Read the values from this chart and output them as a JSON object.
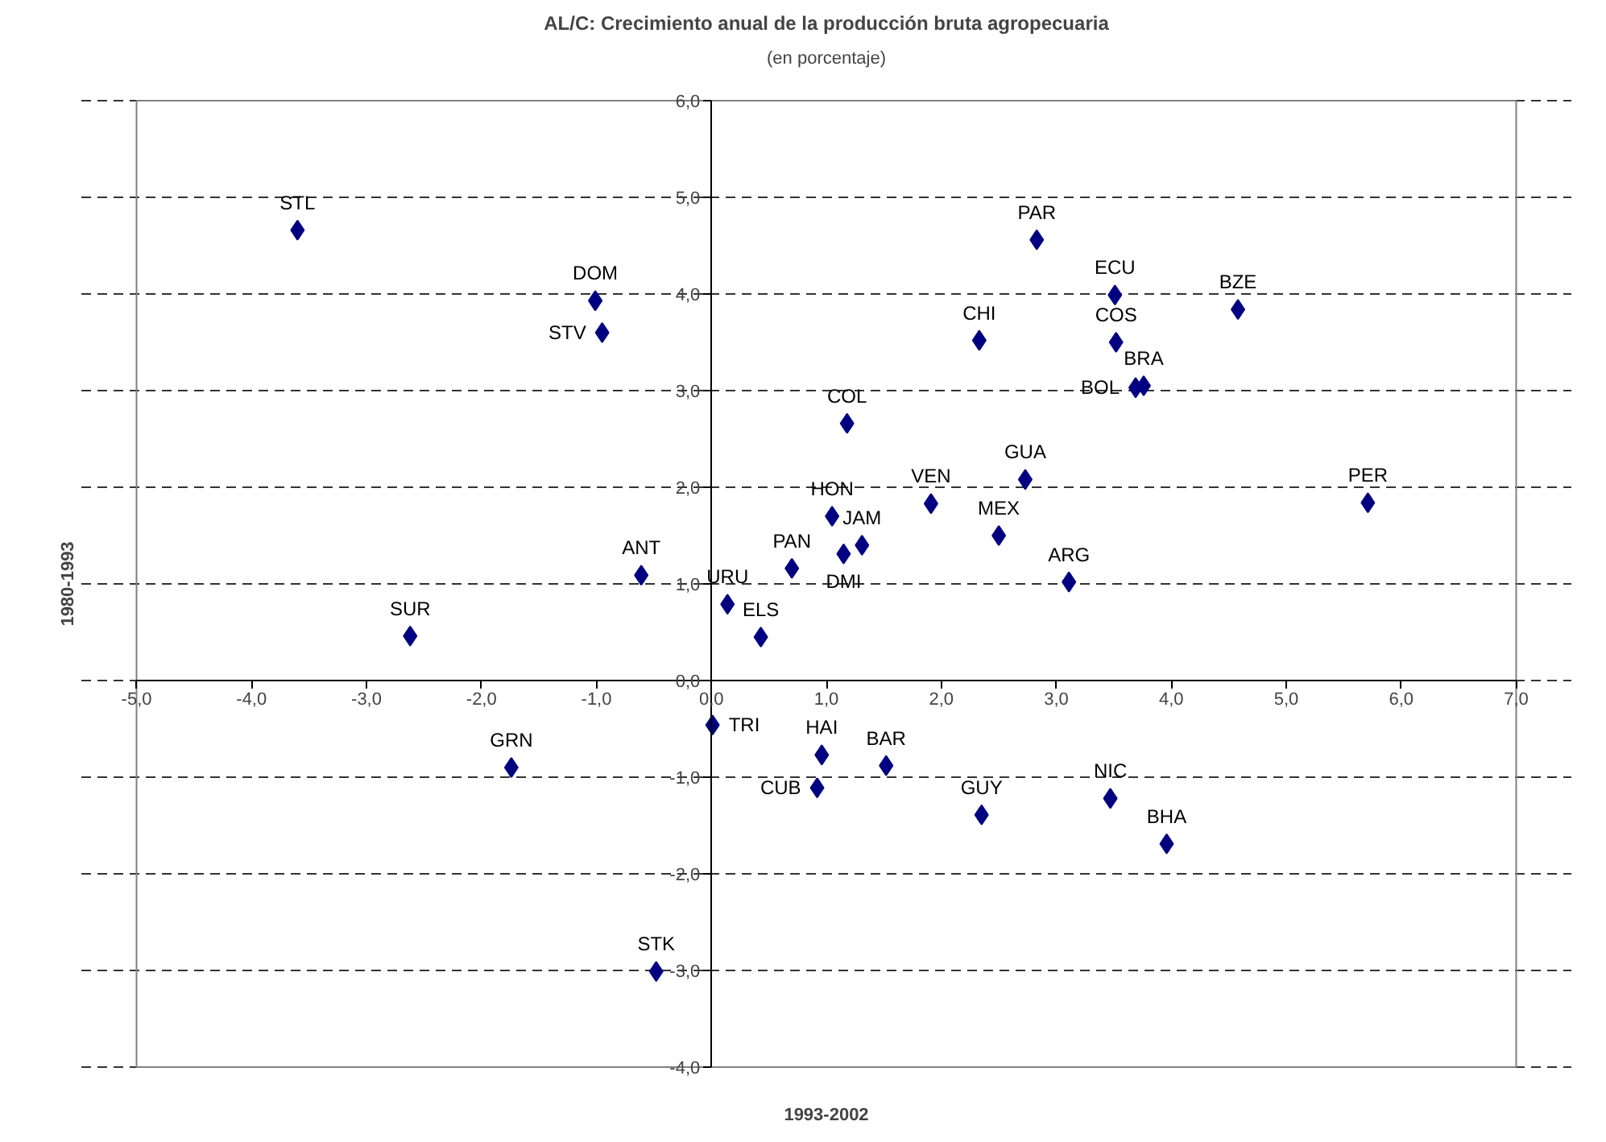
{
  "chart_data": {
    "type": "scatter",
    "title": "AL/C: Crecimiento anual de la producción bruta agropecuaria",
    "subtitle": "(en porcentaje)",
    "xlabel": "1993-2002",
    "ylabel": "1980-1993",
    "x": [
      -3.6,
      -1.01,
      -0.95,
      -0.61,
      0.14,
      -2.62,
      0.43,
      2.83,
      3.51,
      4.58,
      2.33,
      3.52,
      3.69,
      3.76,
      1.18,
      2.73,
      1.91,
      1.05,
      2.5,
      1.31,
      1.15,
      0.7,
      3.11,
      5.71,
      0.01,
      -1.74,
      0.96,
      1.52,
      0.92,
      2.35,
      3.47,
      3.96,
      -0.48
    ],
    "series": [
      {
        "color": "#000080",
        "values": [
          4.66,
          3.93,
          3.6,
          1.09,
          0.79,
          0.46,
          0.45,
          4.56,
          3.99,
          3.84,
          3.52,
          3.5,
          3.03,
          3.05,
          2.66,
          2.08,
          1.83,
          1.7,
          1.5,
          1.4,
          1.31,
          1.16,
          1.02,
          1.84,
          -0.46,
          -0.9,
          -0.77,
          -0.88,
          -1.11,
          -1.39,
          -1.22,
          -1.69,
          -3.01
        ]
      }
    ],
    "annotations": [
      {
        "text": "STL",
        "x": -3.6,
        "y": 4.66
      },
      {
        "text": "DOM",
        "x": -1.01,
        "y": 3.93
      },
      {
        "text": "STV",
        "x": -0.95,
        "y": 3.6
      },
      {
        "text": "ANT",
        "x": -0.61,
        "y": 1.09
      },
      {
        "text": "URU",
        "x": 0.14,
        "y": 0.79
      },
      {
        "text": "SUR",
        "x": -2.62,
        "y": 0.46
      },
      {
        "text": "ELS",
        "x": 0.43,
        "y": 0.45
      },
      {
        "text": "PAR",
        "x": 2.83,
        "y": 4.56
      },
      {
        "text": "ECU",
        "x": 3.51,
        "y": 3.99
      },
      {
        "text": "BZE",
        "x": 4.58,
        "y": 3.84
      },
      {
        "text": "CHI",
        "x": 2.33,
        "y": 3.52
      },
      {
        "text": "COS",
        "x": 3.52,
        "y": 3.5
      },
      {
        "text": "BOL",
        "x": 3.69,
        "y": 3.03
      },
      {
        "text": "BRA",
        "x": 3.76,
        "y": 3.05
      },
      {
        "text": "COL",
        "x": 1.18,
        "y": 2.66
      },
      {
        "text": "GUA",
        "x": 2.73,
        "y": 2.08
      },
      {
        "text": "VEN",
        "x": 1.91,
        "y": 1.83
      },
      {
        "text": "HON",
        "x": 1.05,
        "y": 1.7
      },
      {
        "text": "MEX",
        "x": 2.5,
        "y": 1.5
      },
      {
        "text": "JAM",
        "x": 1.31,
        "y": 1.4
      },
      {
        "text": "DMI",
        "x": 1.15,
        "y": 1.31
      },
      {
        "text": "PAN",
        "x": 0.7,
        "y": 1.16
      },
      {
        "text": "ARG",
        "x": 3.11,
        "y": 1.02
      },
      {
        "text": "PER",
        "x": 5.71,
        "y": 1.84
      },
      {
        "text": "TRI",
        "x": 0.01,
        "y": -0.46
      },
      {
        "text": "GRN",
        "x": -1.74,
        "y": -0.9
      },
      {
        "text": "HAI",
        "x": 0.96,
        "y": -0.77
      },
      {
        "text": "BAR",
        "x": 1.52,
        "y": -0.88
      },
      {
        "text": "CUB",
        "x": 0.92,
        "y": -1.11
      },
      {
        "text": "GUY",
        "x": 2.35,
        "y": -1.39
      },
      {
        "text": "NIC",
        "x": 3.47,
        "y": -1.22
      },
      {
        "text": "BHA",
        "x": 3.96,
        "y": -1.69
      },
      {
        "text": "STK",
        "x": -0.48,
        "y": -3.01
      }
    ],
    "xlim": [
      -5,
      7
    ],
    "ylim": [
      -4,
      6
    ],
    "xticks": [
      {
        "value": -5,
        "label": "-5,0"
      },
      {
        "value": -4,
        "label": "-4,0"
      },
      {
        "value": -3,
        "label": "-3,0"
      },
      {
        "value": -2,
        "label": "-2,0"
      },
      {
        "value": -1,
        "label": "-1,0"
      },
      {
        "value": 0,
        "label": "0,0"
      },
      {
        "value": 1,
        "label": "1,0"
      },
      {
        "value": 2,
        "label": "2,0"
      },
      {
        "value": 3,
        "label": "3,0"
      },
      {
        "value": 4,
        "label": "4,0"
      },
      {
        "value": 5,
        "label": "5,0"
      },
      {
        "value": 6,
        "label": "6,0"
      },
      {
        "value": 7,
        "label": "7,0"
      }
    ],
    "yticks": [
      {
        "value": -4,
        "label": "-4,0"
      },
      {
        "value": -3,
        "label": "-3,0"
      },
      {
        "value": -2,
        "label": "-2,0"
      },
      {
        "value": -1,
        "label": "-1,0"
      },
      {
        "value": 0,
        "label": "0,0"
      },
      {
        "value": 1,
        "label": "1,0"
      },
      {
        "value": 2,
        "label": "2,0"
      },
      {
        "value": 3,
        "label": "3,0"
      },
      {
        "value": 4,
        "label": "4,0"
      },
      {
        "value": 5,
        "label": "5,0"
      },
      {
        "value": 6,
        "label": "6,0"
      }
    ],
    "grid": "y",
    "marker": "diamond"
  }
}
